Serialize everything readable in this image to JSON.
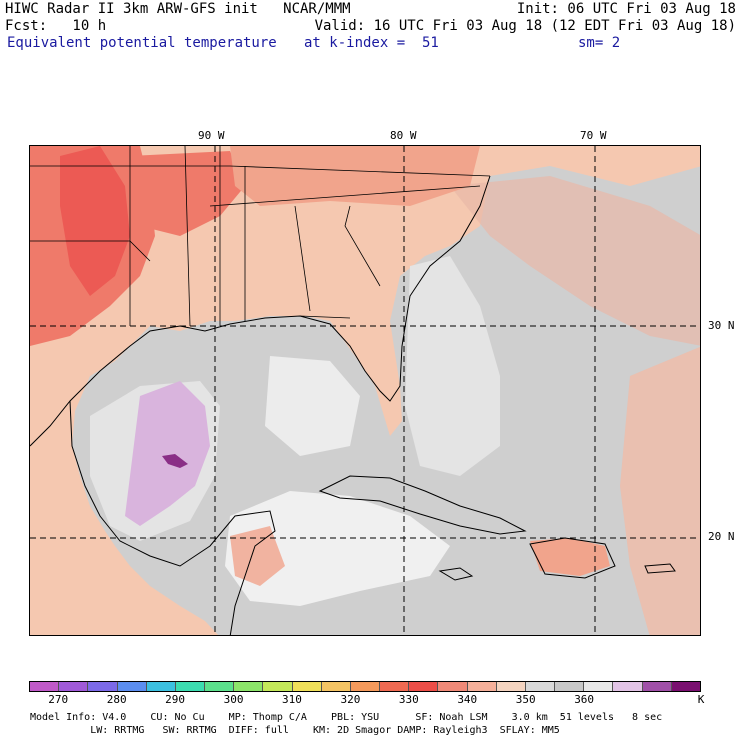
{
  "header": {
    "line1_left": "HIWC Radar II 3km ARW-GFS init   NCAR/MMM",
    "line1_right": "Init: 06 UTC Fri 03 Aug 18",
    "line2_left": "Fcst:   10 h",
    "line2_right": "Valid: 16 UTC Fri 03 Aug 18 (12 EDT Fri 03 Aug 18)",
    "field_name": "Equivalent potential temperature",
    "level": "at k-index =  51",
    "smoothing": "sm= 2"
  },
  "map": {
    "lon_labels": [
      "90 W",
      "80 W",
      "70 W"
    ],
    "lat_labels": [
      "30 N",
      "20 N"
    ],
    "colors": {
      "ocean_base": "#cfcfcf",
      "light_gray": "#e4e4e4",
      "very_light": "#f2f2f2",
      "peach": "#f5c8b0",
      "salmon": "#f1a48c",
      "coral": "#ef7a6a",
      "red": "#ec5a54",
      "lavender": "#d9b4dd",
      "purple": "#8a2e86"
    }
  },
  "colorbar": {
    "colors": [
      "#c05ac8",
      "#a05ad8",
      "#7c6ae8",
      "#5c8ef0",
      "#3cc0e0",
      "#3cdcb0",
      "#5ce08c",
      "#8ce46a",
      "#c4e85a",
      "#f0e05a",
      "#f4c464",
      "#f49a5c",
      "#ef6a52",
      "#ec4e48",
      "#f08a78",
      "#f5b09a",
      "#f4d4c0",
      "#d9d9d9",
      "#c8c8c8",
      "#e8e8e8",
      "#e2c4e6",
      "#a050a8",
      "#7a1070"
    ],
    "tick_labels": [
      "270",
      "280",
      "290",
      "300",
      "310",
      "320",
      "330",
      "340",
      "350",
      "360",
      "K"
    ]
  },
  "footer": {
    "line1": "Model Info: V4.0    CU: No Cu    MP: Thomp C/A    PBL: YSU      SF: Noah LSM    3.0 km  51 levels   8 sec",
    "line2": "          LW: RRTMG   SW: RRTMG  DIFF: full    KM: 2D Smagor DAMP: Rayleigh3  SFLAY: MM5"
  }
}
